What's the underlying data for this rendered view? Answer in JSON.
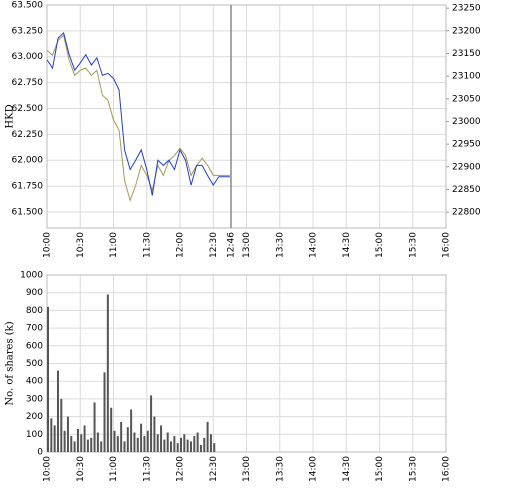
{
  "chart_data": [
    {
      "type": "line",
      "y_label": "HKD",
      "x": [
        "10:00",
        "10:05",
        "10:10",
        "10:15",
        "10:20",
        "10:25",
        "10:30",
        "10:35",
        "10:40",
        "10:45",
        "10:50",
        "10:55",
        "11:00",
        "11:05",
        "11:10",
        "11:15",
        "11:20",
        "11:25",
        "11:30",
        "11:35",
        "11:40",
        "11:45",
        "11:50",
        "11:55",
        "12:00",
        "12:05",
        "12:10",
        "12:15",
        "12:20",
        "12:25",
        "12:30",
        "12:35",
        "12:40",
        "12:45"
      ],
      "xlim": [
        "10:00",
        "16:00"
      ],
      "xticks": [
        "10:00",
        "10:30",
        "11:00",
        "11:30",
        "12:00",
        "12:30",
        "13:00",
        "13:30",
        "14:00",
        "14:30",
        "15:00",
        "15:30",
        "16:00"
      ],
      "now": "12:46",
      "ylim": [
        61.345,
        63.5
      ],
      "yticks": [
        {
          "value": 61.5,
          "label": "61.500"
        },
        {
          "value": 61.75,
          "label": "61.750"
        },
        {
          "value": 62,
          "label": "62.000"
        },
        {
          "value": 62.25,
          "label": "62.250"
        },
        {
          "value": 62.5,
          "label": "62.500"
        },
        {
          "value": 62.75,
          "label": "62.750"
        },
        {
          "value": 63,
          "label": "63.000"
        },
        {
          "value": 63.25,
          "label": "63.250"
        },
        {
          "value": 63.5,
          "label": "63.500"
        }
      ],
      "y2lim": [
        22765,
        23257
      ],
      "y2ticks": [
        22800,
        22850,
        22900,
        22950,
        23000,
        23050,
        23100,
        23150,
        23200,
        23250
      ],
      "grid": true,
      "series": [
        {
          "color": "#a59a56",
          "axis": "y2",
          "values": [
            23157,
            23146,
            23179,
            23190,
            23135,
            23102,
            23113,
            23118,
            23102,
            23113,
            23058,
            23047,
            23003,
            22981,
            22870,
            22826,
            22859,
            22903,
            22881,
            22848,
            22903,
            22881,
            22914,
            22925,
            22941,
            22925,
            22881,
            22903,
            22919,
            22903,
            22881,
            22881,
            22881,
            22881
          ]
        },
        {
          "color": "#2040c8",
          "values": [
            62.97,
            62.89,
            63.18,
            63.23,
            63.02,
            62.87,
            62.94,
            63.02,
            62.92,
            62.99,
            62.82,
            62.84,
            62.79,
            62.68,
            62.1,
            61.91,
            62.0,
            62.1,
            61.91,
            61.66,
            62.0,
            61.95,
            62.0,
            61.91,
            62.1,
            62.0,
            61.76,
            61.95,
            61.95,
            61.85,
            61.76,
            61.84,
            61.84,
            61.84
          ]
        }
      ]
    },
    {
      "type": "bar",
      "y_label": "No. of shares (k)",
      "x": [
        "10:00",
        "10:03",
        "10:06",
        "10:09",
        "10:12",
        "10:15",
        "10:18",
        "10:21",
        "10:24",
        "10:27",
        "10:30",
        "10:33",
        "10:36",
        "10:39",
        "10:42",
        "10:45",
        "10:48",
        "10:51",
        "10:54",
        "10:57",
        "11:00",
        "11:03",
        "11:06",
        "11:09",
        "11:12",
        "11:15",
        "11:18",
        "11:21",
        "11:24",
        "11:27",
        "11:30",
        "11:33",
        "11:36",
        "11:39",
        "11:42",
        "11:45",
        "11:48",
        "11:51",
        "11:54",
        "11:57",
        "12:00",
        "12:03",
        "12:06",
        "12:09",
        "12:12",
        "12:15",
        "12:18",
        "12:21",
        "12:24",
        "12:27",
        "12:30"
      ],
      "values": [
        820,
        190,
        150,
        460,
        300,
        120,
        200,
        90,
        60,
        130,
        100,
        150,
        70,
        80,
        280,
        110,
        60,
        450,
        890,
        250,
        120,
        90,
        170,
        60,
        140,
        240,
        110,
        80,
        160,
        90,
        120,
        320,
        200,
        100,
        150,
        70,
        110,
        60,
        90,
        50,
        80,
        100,
        70,
        60,
        90,
        110,
        40,
        80,
        170,
        100,
        50
      ],
      "color": "#555555",
      "xlim": [
        "10:00",
        "16:00"
      ],
      "xticks": [
        "10:00",
        "10:30",
        "11:00",
        "11:30",
        "12:00",
        "12:30",
        "13:00",
        "13:30",
        "14:00",
        "14:30",
        "15:00",
        "15:30",
        "16:00"
      ],
      "ylim": [
        0,
        1000
      ],
      "yticks": [
        0,
        100,
        200,
        300,
        400,
        500,
        600,
        700,
        800,
        900,
        1000
      ],
      "grid": true
    }
  ]
}
